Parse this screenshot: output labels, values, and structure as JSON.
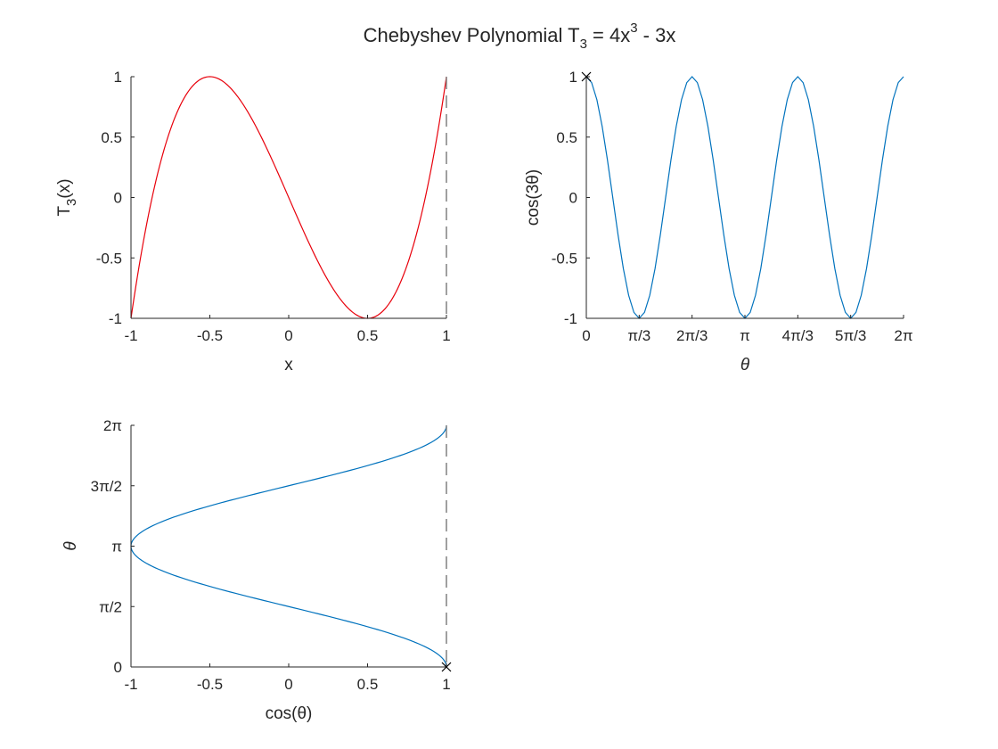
{
  "figure": {
    "title_main": "Chebyshev Polynomial T",
    "title_sub": "3",
    "title_mid": " = 4x",
    "title_sup": "3",
    "title_end": " - 3x"
  },
  "colors": {
    "red_series": "#e8000b",
    "blue_series": "#0072bd",
    "dashed_line": "#808080",
    "axis": "#262626",
    "marker": "#000000"
  },
  "chart_data": [
    {
      "type": "line",
      "panel": "top-left",
      "function": "T3(x) = 4x^3 - 3x",
      "x_range": [
        -1,
        1
      ],
      "samples": 200,
      "xlabel": "x",
      "ylabel_main": "T",
      "ylabel_sub": "3",
      "ylabel_end": "(x)",
      "xlim": [
        -1,
        1
      ],
      "ylim": [
        -1,
        1
      ],
      "xticks": [
        -1,
        -0.5,
        0,
        0.5,
        1
      ],
      "xtick_labels": [
        "-1",
        "-0.5",
        "0",
        "0.5",
        "1"
      ],
      "yticks": [
        -1,
        -0.5,
        0,
        0.5,
        1
      ],
      "ytick_labels": [
        "-1",
        "-0.5",
        "0",
        "0.5",
        "1"
      ],
      "vertical_dashed_x": 1,
      "series_color": "red_series",
      "box": "left-bottom"
    },
    {
      "type": "line",
      "panel": "top-right",
      "function": "cos(3*theta)",
      "x_range_pi": [
        0,
        2
      ],
      "samples": 60,
      "xlabel": "θ",
      "ylabel": "cos(3θ)",
      "xlim_pi": [
        0,
        2
      ],
      "ylim": [
        -1,
        1
      ],
      "xticks_pi": [
        0,
        0.3333,
        0.6667,
        1,
        1.3333,
        1.6667,
        2
      ],
      "xtick_labels": [
        "0",
        "π/3",
        "2π/3",
        "π",
        "4π/3",
        "5π/3",
        "2π"
      ],
      "yticks": [
        -1,
        -0.5,
        0,
        0.5,
        1
      ],
      "ytick_labels": [
        "-1",
        "-0.5",
        "0",
        "0.5",
        "1"
      ],
      "marker": {
        "symbol": "x",
        "x": 0,
        "y": 1
      },
      "series_color": "blue_series",
      "box": "left-bottom"
    },
    {
      "type": "line",
      "panel": "bottom-left",
      "function": "theta vs cos(theta)",
      "theta_range_pi": [
        0,
        2
      ],
      "samples": 200,
      "xlabel": "cos(θ)",
      "ylabel": "θ",
      "xlim": [
        -1,
        1
      ],
      "ylim_pi": [
        0,
        2
      ],
      "xticks": [
        -1,
        -0.5,
        0,
        0.5,
        1
      ],
      "xtick_labels": [
        "-1",
        "-0.5",
        "0",
        "0.5",
        "1"
      ],
      "yticks_pi": [
        0,
        0.5,
        1,
        1.5,
        2
      ],
      "ytick_labels": [
        "0",
        "π/2",
        "π",
        "3π/2",
        "2π"
      ],
      "vertical_dashed_x": 1,
      "marker": {
        "symbol": "x",
        "x": 1,
        "y_pi": 0
      },
      "series_color": "blue_series",
      "box": "left-bottom"
    }
  ]
}
